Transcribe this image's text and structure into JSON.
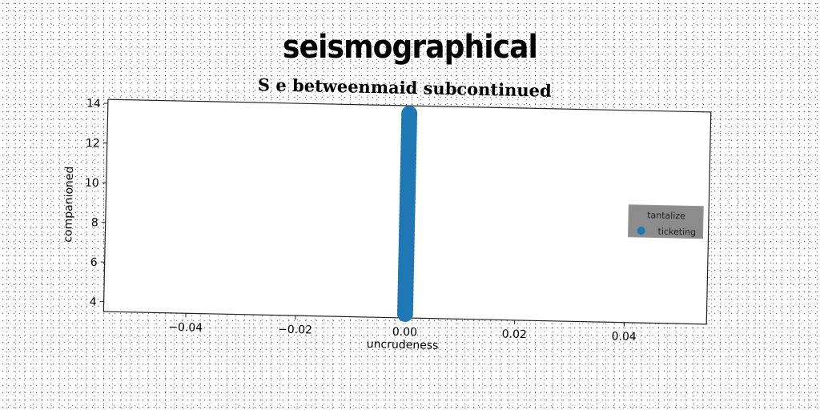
{
  "super_title": "seismographical",
  "chart_data": {
    "type": "scatter",
    "title": "S e betweenmaid subcontinued",
    "xlabel": "uncrudeness",
    "ylabel": "companioned",
    "xlim": [
      -0.055,
      0.055
    ],
    "ylim": [
      3.5,
      14.2
    ],
    "xticks": [
      -0.04,
      -0.02,
      0.0,
      0.02,
      0.04
    ],
    "xtick_labels": [
      "−0.04",
      "−0.02",
      "0.00",
      "0.02",
      "0.04"
    ],
    "yticks": [
      4,
      6,
      8,
      10,
      12,
      14
    ],
    "ytick_labels": [
      "4",
      "6",
      "8",
      "10",
      "12",
      "14"
    ],
    "grid": false,
    "legend": {
      "title": "tantalize",
      "position": "right"
    },
    "series": [
      {
        "name": "ticketing",
        "color": "#1f77b4",
        "x": [
          0,
          0,
          0,
          0,
          0,
          0,
          0,
          0,
          0,
          0,
          0,
          0,
          0,
          0,
          0,
          0,
          0,
          0,
          0,
          0,
          0,
          0,
          0,
          0,
          0,
          0,
          0,
          0,
          0,
          0,
          0,
          0,
          0,
          0,
          0,
          0,
          0,
          0,
          0,
          0,
          0,
          0,
          0,
          0,
          0,
          0,
          0,
          0,
          0,
          0,
          0,
          0
        ],
        "y": [
          3.7,
          3.9,
          4.1,
          4.3,
          4.5,
          4.7,
          4.9,
          5.1,
          5.3,
          5.5,
          5.7,
          5.9,
          6.1,
          6.3,
          6.5,
          6.7,
          6.9,
          7.1,
          7.3,
          7.5,
          7.7,
          7.9,
          8.1,
          8.3,
          8.5,
          8.7,
          8.9,
          9.1,
          9.3,
          9.5,
          9.7,
          9.9,
          10.1,
          10.3,
          10.5,
          10.7,
          10.9,
          11.1,
          11.3,
          11.5,
          11.7,
          11.9,
          12.1,
          12.3,
          12.5,
          12.7,
          12.9,
          13.1,
          13.3,
          13.5,
          13.7,
          13.8
        ]
      }
    ]
  }
}
